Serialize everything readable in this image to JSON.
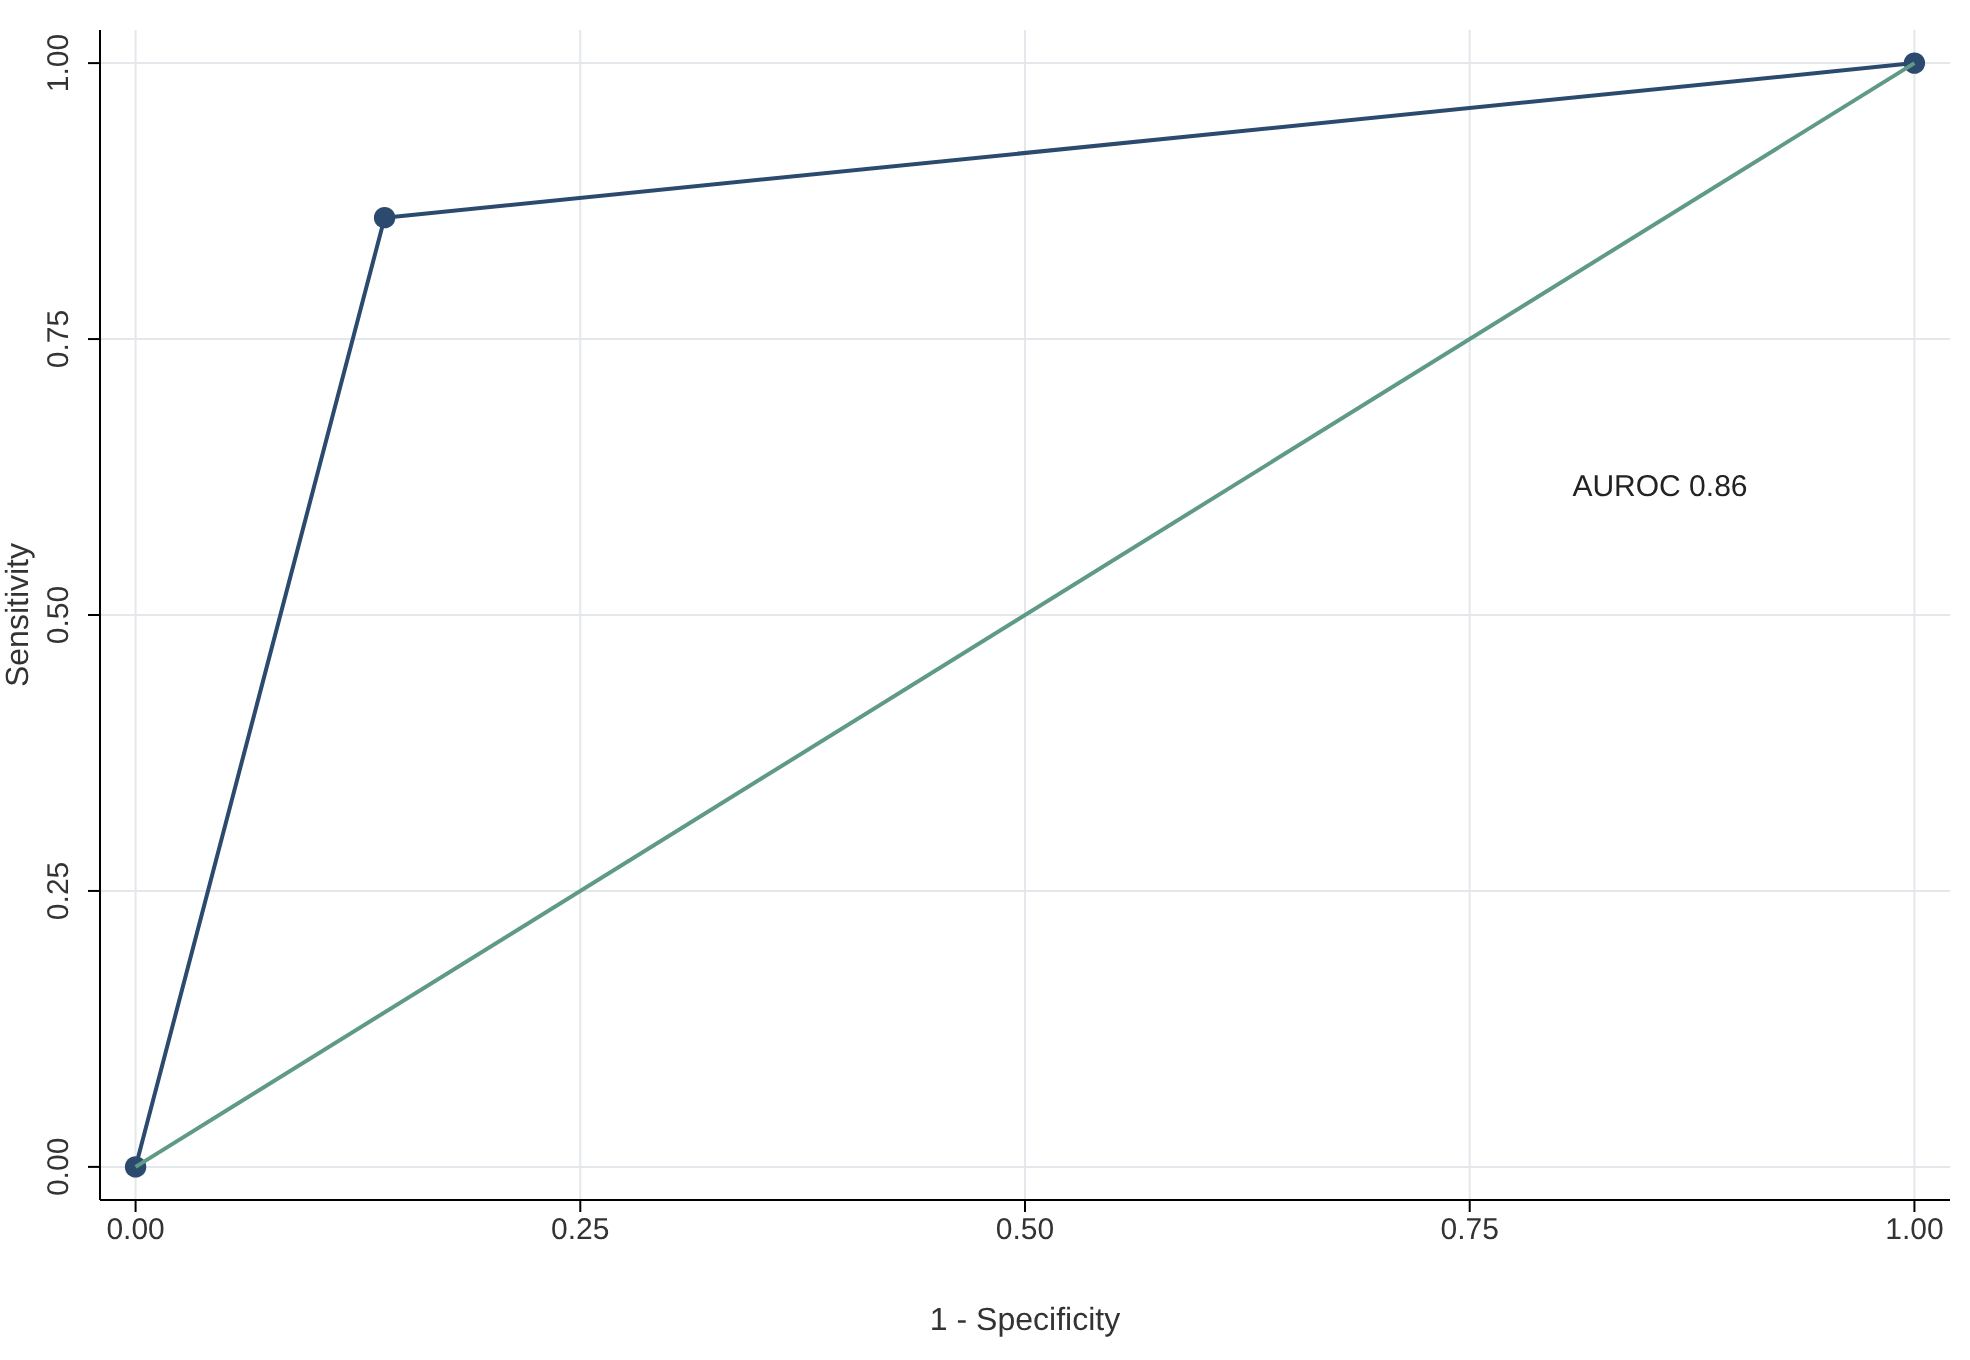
{
  "chart_data": {
    "type": "line",
    "xlabel": "1 - Specificity",
    "ylabel": "Sensitivity",
    "xlim": [
      -0.02,
      1.02
    ],
    "ylim": [
      -0.03,
      1.03
    ],
    "xticks": [
      {
        "value": 0,
        "label": "0.00"
      },
      {
        "value": 0.25,
        "label": "0.25"
      },
      {
        "value": 0.5,
        "label": "0.50"
      },
      {
        "value": 0.75,
        "label": "0.75"
      },
      {
        "value": 1,
        "label": "1.00"
      }
    ],
    "yticks": [
      {
        "value": 0,
        "label": "0.00"
      },
      {
        "value": 0.25,
        "label": "0.25"
      },
      {
        "value": 0.5,
        "label": "0.50"
      },
      {
        "value": 0.75,
        "label": "0.75"
      },
      {
        "value": 1,
        "label": "1.00"
      }
    ],
    "grid": true,
    "line_style": "solid",
    "annotations": [
      "AUROC 0.86"
    ],
    "series": [
      {
        "color": "#2b4a6e",
        "marker": "circle",
        "x": [
          0,
          0.14,
          1
        ],
        "values": [
          0,
          0.86,
          1
        ]
      },
      {
        "color": "#5f9a86",
        "marker": "none",
        "x": [
          0,
          1
        ],
        "values": [
          0,
          1
        ]
      }
    ]
  }
}
